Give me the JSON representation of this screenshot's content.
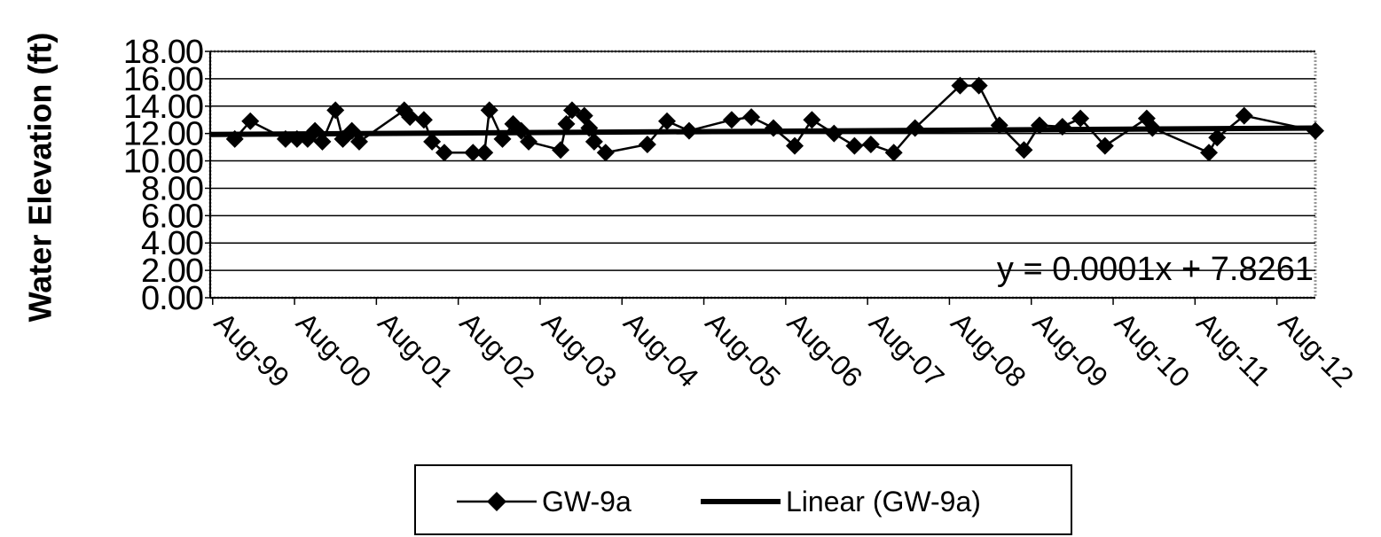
{
  "chart_data": {
    "type": "line",
    "y_label": "Water Elevation (ft)",
    "annotation": "y = 0.0001x + 7.8261",
    "grid": true,
    "legend": "bottom",
    "xlim": [
      1999.55,
      2013.05
    ],
    "xticks": [
      {
        "value": 1999.58,
        "label": "Aug-99"
      },
      {
        "value": 2000.58,
        "label": "Aug-00"
      },
      {
        "value": 2001.58,
        "label": "Aug-01"
      },
      {
        "value": 2002.58,
        "label": "Aug-02"
      },
      {
        "value": 2003.58,
        "label": "Aug-03"
      },
      {
        "value": 2004.58,
        "label": "Aug-04"
      },
      {
        "value": 2005.58,
        "label": "Aug-05"
      },
      {
        "value": 2006.58,
        "label": "Aug-06"
      },
      {
        "value": 2007.58,
        "label": "Aug-07"
      },
      {
        "value": 2008.58,
        "label": "Aug-08"
      },
      {
        "value": 2009.58,
        "label": "Aug-09"
      },
      {
        "value": 2010.58,
        "label": "Aug-10"
      },
      {
        "value": 2011.58,
        "label": "Aug-11"
      },
      {
        "value": 2012.58,
        "label": "Aug-12"
      }
    ],
    "ylim": [
      0,
      18
    ],
    "yticks": [
      {
        "value": 0,
        "label": "0.00"
      },
      {
        "value": 2,
        "label": "2.00"
      },
      {
        "value": 4,
        "label": "4.00"
      },
      {
        "value": 6,
        "label": "6.00"
      },
      {
        "value": 8,
        "label": "8.00"
      },
      {
        "value": 10,
        "label": "10.00"
      },
      {
        "value": 12,
        "label": "12.00"
      },
      {
        "value": 14,
        "label": "14.00"
      },
      {
        "value": 16,
        "label": "16.00"
      },
      {
        "value": 18,
        "label": "18.00"
      }
    ],
    "series": [
      {
        "name": "GW-9a",
        "color": "#000000",
        "marker": "diamond",
        "x": [
          1999.85,
          2000.04,
          2000.47,
          2000.61,
          2000.74,
          2000.83,
          2000.92,
          2001.08,
          2001.17,
          2001.28,
          2001.37,
          2001.92,
          2001.99,
          2002.16,
          2002.26,
          2002.41,
          2002.76,
          2002.9,
          2002.96,
          2003.12,
          2003.25,
          2003.35,
          2003.44,
          2003.83,
          2003.9,
          2003.97,
          2004.12,
          2004.18,
          2004.24,
          2004.38,
          2004.89,
          2005.13,
          2005.4,
          2005.92,
          2006.16,
          2006.43,
          2006.69,
          2006.9,
          2007.17,
          2007.42,
          2007.62,
          2007.9,
          2008.16,
          2008.71,
          2008.94,
          2009.19,
          2009.49,
          2009.68,
          2009.96,
          2010.18,
          2010.48,
          2010.99,
          2011.06,
          2011.75,
          2011.85,
          2012.18,
          2013.05
        ],
        "values": [
          11.6,
          12.9,
          11.6,
          11.6,
          11.6,
          12.2,
          11.4,
          13.7,
          11.6,
          12.2,
          11.4,
          13.7,
          13.2,
          13.0,
          11.4,
          10.6,
          10.6,
          10.6,
          13.7,
          11.6,
          12.7,
          12.2,
          11.4,
          10.8,
          12.7,
          13.7,
          13.3,
          12.4,
          11.4,
          10.6,
          11.2,
          12.9,
          12.2,
          13.0,
          13.2,
          12.4,
          11.1,
          13.0,
          12.0,
          11.1,
          11.2,
          10.6,
          12.4,
          15.5,
          15.5,
          12.6,
          10.8,
          12.6,
          12.5,
          13.1,
          11.1,
          13.1,
          12.4,
          10.6,
          11.7,
          13.3,
          12.2
        ]
      },
      {
        "name": "Linear (GW-9a)",
        "color": "#000000",
        "marker": "none",
        "x": [
          1999.55,
          2013.05
        ],
        "values": [
          11.93,
          12.4
        ]
      }
    ]
  }
}
